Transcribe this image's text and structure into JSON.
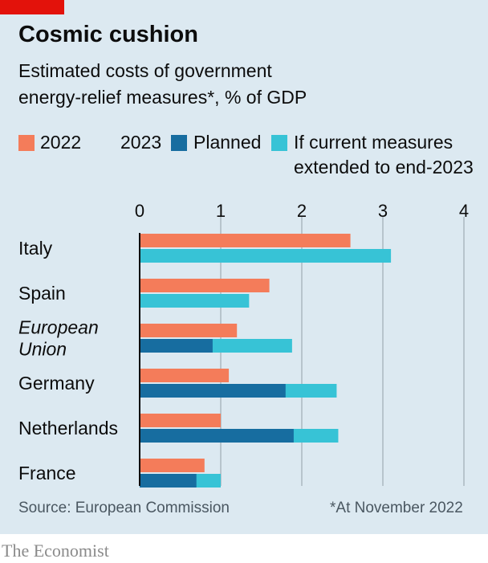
{
  "title": "Cosmic cushion",
  "subtitle_lines": [
    "Estimated costs of government",
    "energy-relief measures*, % of GDP"
  ],
  "legend": {
    "y2022": "2022",
    "y2023": "2023",
    "planned": "Planned",
    "extended_line1": "If current measures",
    "extended_line2": "extended to end-2023"
  },
  "colors": {
    "bar_2022": "#f47c5a",
    "planned": "#176da0",
    "extended": "#37c3d6",
    "gridline": "#b7c4cc",
    "axis": "#0c0c0c"
  },
  "chart_data": {
    "type": "bar",
    "orientation": "horizontal",
    "xlim": [
      0,
      4
    ],
    "x_ticks": [
      "0",
      "1",
      "2",
      "3",
      "4"
    ],
    "categories": [
      "Italy",
      "Spain",
      "European Union",
      "Germany",
      "Netherlands",
      "France"
    ],
    "category_lines": [
      [
        "Italy"
      ],
      [
        "Spain"
      ],
      [
        "European",
        "Union"
      ],
      [
        "Germany"
      ],
      [
        "Netherlands"
      ],
      [
        "France"
      ]
    ],
    "category_italic": [
      false,
      false,
      true,
      false,
      false,
      false
    ],
    "series": [
      {
        "name": "2022",
        "values": [
          2.6,
          1.6,
          1.2,
          1.1,
          1.0,
          0.8
        ]
      },
      {
        "name": "Planned",
        "values": [
          0,
          0,
          0.9,
          1.8,
          1.9,
          0.7
        ]
      },
      {
        "name": "If current measures extended to end-2023",
        "values": [
          3.1,
          1.35,
          1.88,
          2.43,
          2.45,
          1.0
        ]
      }
    ],
    "grid": true
  },
  "source": "Source: European Commission",
  "note": "*At November 2022",
  "brand": "The Economist"
}
